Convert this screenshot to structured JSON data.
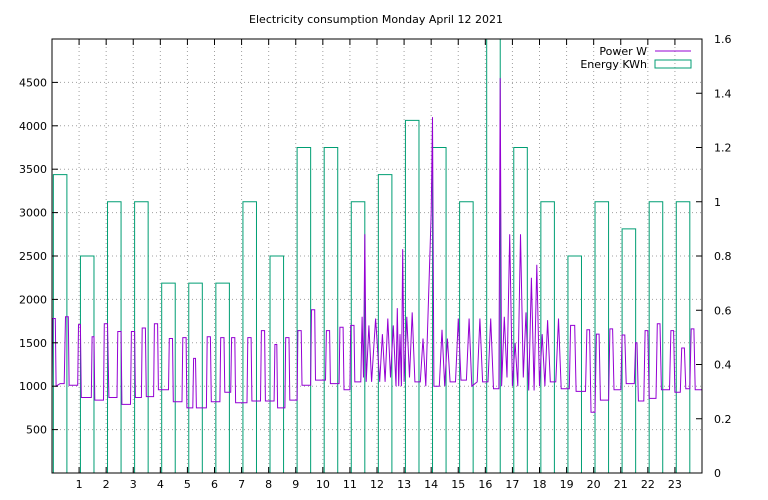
{
  "chart_data": {
    "type": "line",
    "title": "Electricity consumption Monday April 12 2021",
    "grid": true,
    "legend_placement": "top-right",
    "x_axis": {
      "min": 0,
      "max": 24,
      "ticks": [
        1,
        2,
        3,
        4,
        5,
        6,
        7,
        8,
        9,
        10,
        11,
        12,
        13,
        14,
        15,
        16,
        17,
        18,
        19,
        20,
        21,
        22,
        23
      ],
      "tick_labels": [
        "1",
        "2",
        "3",
        "4",
        "5",
        "6",
        "7",
        "8",
        "9",
        "10",
        "11",
        "12",
        "13",
        "14",
        "15",
        "16",
        "17",
        "18",
        "19",
        "20",
        "21",
        "22",
        "23"
      ]
    },
    "y_axis_left": {
      "min": 0,
      "max": 5000,
      "ticks": [
        500,
        1000,
        1500,
        2000,
        2500,
        3000,
        3500,
        4000,
        4500
      ],
      "tick_labels": [
        "500",
        "1000",
        "1500",
        "2000",
        "2500",
        "3000",
        "3500",
        "4000",
        "4500"
      ]
    },
    "y_axis_right": {
      "min": 0,
      "max": 1.6,
      "ticks": [
        0,
        0.2,
        0.4,
        0.6,
        0.8,
        1,
        1.2,
        1.4,
        1.6
      ],
      "tick_labels": [
        "0",
        "0.2",
        "0.4",
        "0.6",
        "0.8",
        "1",
        "1.2",
        "1.4",
        "1.6"
      ]
    },
    "series": [
      {
        "name": "Power W",
        "color": "#9400d3",
        "axis": "left",
        "kind": "line",
        "points": [
          [
            0,
            1000
          ],
          [
            0.03,
            1780
          ],
          [
            0.12,
            1780
          ],
          [
            0.15,
            1000
          ],
          [
            0.3,
            1030
          ],
          [
            0.45,
            1030
          ],
          [
            0.5,
            1800
          ],
          [
            0.6,
            1800
          ],
          [
            0.63,
            1010
          ],
          [
            0.95,
            1010
          ],
          [
            0.98,
            1710
          ],
          [
            1.05,
            1710
          ],
          [
            1.08,
            870
          ],
          [
            1.45,
            870
          ],
          [
            1.48,
            1570
          ],
          [
            1.55,
            1570
          ],
          [
            1.58,
            840
          ],
          [
            1.9,
            840
          ],
          [
            1.93,
            1720
          ],
          [
            2.05,
            1720
          ],
          [
            2.1,
            870
          ],
          [
            2.4,
            870
          ],
          [
            2.43,
            1630
          ],
          [
            2.55,
            1630
          ],
          [
            2.58,
            790
          ],
          [
            2.9,
            790
          ],
          [
            2.93,
            1630
          ],
          [
            3.05,
            1630
          ],
          [
            3.08,
            870
          ],
          [
            3.3,
            870
          ],
          [
            3.33,
            1670
          ],
          [
            3.45,
            1670
          ],
          [
            3.48,
            880
          ],
          [
            3.75,
            880
          ],
          [
            3.78,
            1720
          ],
          [
            3.9,
            1720
          ],
          [
            3.93,
            960
          ],
          [
            4.3,
            960
          ],
          [
            4.33,
            1550
          ],
          [
            4.45,
            1550
          ],
          [
            4.48,
            820
          ],
          [
            4.8,
            820
          ],
          [
            4.83,
            1560
          ],
          [
            4.95,
            1560
          ],
          [
            4.98,
            750
          ],
          [
            5.2,
            750
          ],
          [
            5.23,
            1320
          ],
          [
            5.3,
            1320
          ],
          [
            5.33,
            750
          ],
          [
            5.7,
            750
          ],
          [
            5.73,
            1570
          ],
          [
            5.85,
            1570
          ],
          [
            5.88,
            820
          ],
          [
            6.2,
            820
          ],
          [
            6.23,
            1560
          ],
          [
            6.35,
            1560
          ],
          [
            6.38,
            930
          ],
          [
            6.6,
            930
          ],
          [
            6.63,
            1560
          ],
          [
            6.75,
            1560
          ],
          [
            6.78,
            810
          ],
          [
            7.2,
            810
          ],
          [
            7.23,
            1560
          ],
          [
            7.35,
            1560
          ],
          [
            7.38,
            830
          ],
          [
            7.7,
            830
          ],
          [
            7.73,
            1640
          ],
          [
            7.85,
            1640
          ],
          [
            7.88,
            830
          ],
          [
            8.2,
            830
          ],
          [
            8.23,
            1480
          ],
          [
            8.3,
            1480
          ],
          [
            8.33,
            750
          ],
          [
            8.6,
            750
          ],
          [
            8.63,
            1560
          ],
          [
            8.75,
            1560
          ],
          [
            8.78,
            840
          ],
          [
            9.05,
            840
          ],
          [
            9.08,
            1640
          ],
          [
            9.2,
            1640
          ],
          [
            9.23,
            1010
          ],
          [
            9.55,
            1010
          ],
          [
            9.58,
            1880
          ],
          [
            9.7,
            1880
          ],
          [
            9.73,
            1070
          ],
          [
            10.1,
            1070
          ],
          [
            10.13,
            1640
          ],
          [
            10.25,
            1640
          ],
          [
            10.28,
            1030
          ],
          [
            10.6,
            1030
          ],
          [
            10.63,
            1680
          ],
          [
            10.75,
            1680
          ],
          [
            10.78,
            960
          ],
          [
            11.0,
            960
          ],
          [
            11.03,
            1700
          ],
          [
            11.15,
            1700
          ],
          [
            11.18,
            1050
          ],
          [
            11.4,
            1050
          ],
          [
            11.45,
            1800
          ],
          [
            11.5,
            1100
          ],
          [
            11.55,
            2750
          ],
          [
            11.6,
            1050
          ],
          [
            11.7,
            1700
          ],
          [
            11.8,
            1050
          ],
          [
            11.95,
            1780
          ],
          [
            12.1,
            1050
          ],
          [
            12.2,
            1600
          ],
          [
            12.3,
            1050
          ],
          [
            12.4,
            1780
          ],
          [
            12.5,
            1100
          ],
          [
            12.6,
            1700
          ],
          [
            12.7,
            1000
          ],
          [
            12.75,
            1900
          ],
          [
            12.8,
            1000
          ],
          [
            12.85,
            1600
          ],
          [
            12.9,
            1000
          ],
          [
            12.95,
            2580
          ],
          [
            13.0,
            1050
          ],
          [
            13.1,
            1800
          ],
          [
            13.2,
            1100
          ],
          [
            13.3,
            1850
          ],
          [
            13.4,
            1050
          ],
          [
            13.5,
            1050
          ],
          [
            13.6,
            1050
          ],
          [
            13.7,
            1550
          ],
          [
            13.8,
            1000
          ],
          [
            13.9,
            2000
          ],
          [
            14.0,
            3000
          ],
          [
            14.05,
            4100
          ],
          [
            14.1,
            1000
          ],
          [
            14.3,
            1000
          ],
          [
            14.4,
            1650
          ],
          [
            14.5,
            1000
          ],
          [
            14.6,
            1550
          ],
          [
            14.7,
            1050
          ],
          [
            14.9,
            1050
          ],
          [
            15.0,
            1780
          ],
          [
            15.1,
            1070
          ],
          [
            15.3,
            1070
          ],
          [
            15.4,
            1780
          ],
          [
            15.5,
            1000
          ],
          [
            15.7,
            1050
          ],
          [
            15.8,
            1780
          ],
          [
            15.9,
            1050
          ],
          [
            16.1,
            1050
          ],
          [
            16.2,
            1780
          ],
          [
            16.3,
            970
          ],
          [
            16.5,
            970
          ],
          [
            16.55,
            4550
          ],
          [
            16.6,
            1000
          ],
          [
            16.7,
            1800
          ],
          [
            16.8,
            1100
          ],
          [
            16.9,
            2750
          ],
          [
            17.0,
            1000
          ],
          [
            17.1,
            1500
          ],
          [
            17.2,
            1000
          ],
          [
            17.3,
            2750
          ],
          [
            17.4,
            1100
          ],
          [
            17.5,
            1850
          ],
          [
            17.6,
            950
          ],
          [
            17.7,
            2250
          ],
          [
            17.8,
            950
          ],
          [
            17.9,
            2400
          ],
          [
            18.0,
            1000
          ],
          [
            18.1,
            1600
          ],
          [
            18.2,
            1000
          ],
          [
            18.3,
            1760
          ],
          [
            18.4,
            1050
          ],
          [
            18.6,
            1050
          ],
          [
            18.7,
            1780
          ],
          [
            18.8,
            970
          ],
          [
            19.1,
            970
          ],
          [
            19.15,
            1700
          ],
          [
            19.3,
            1700
          ],
          [
            19.35,
            940
          ],
          [
            19.7,
            940
          ],
          [
            19.75,
            1650
          ],
          [
            19.85,
            1650
          ],
          [
            19.9,
            700
          ],
          [
            20.05,
            700
          ],
          [
            20.1,
            1600
          ],
          [
            20.2,
            1600
          ],
          [
            20.25,
            840
          ],
          [
            20.55,
            840
          ],
          [
            20.6,
            1660
          ],
          [
            20.7,
            1660
          ],
          [
            20.75,
            960
          ],
          [
            21.0,
            960
          ],
          [
            21.05,
            1590
          ],
          [
            21.15,
            1590
          ],
          [
            21.2,
            1030
          ],
          [
            21.5,
            1030
          ],
          [
            21.55,
            1500
          ],
          [
            21.6,
            1500
          ],
          [
            21.65,
            830
          ],
          [
            21.85,
            830
          ],
          [
            21.9,
            1640
          ],
          [
            22.0,
            1640
          ],
          [
            22.05,
            860
          ],
          [
            22.3,
            860
          ],
          [
            22.35,
            1720
          ],
          [
            22.45,
            1720
          ],
          [
            22.5,
            960
          ],
          [
            22.8,
            960
          ],
          [
            22.85,
            1640
          ],
          [
            22.95,
            1640
          ],
          [
            23.0,
            930
          ],
          [
            23.2,
            930
          ],
          [
            23.25,
            1440
          ],
          [
            23.35,
            1440
          ],
          [
            23.4,
            970
          ],
          [
            23.55,
            970
          ],
          [
            23.6,
            1660
          ],
          [
            23.7,
            1660
          ],
          [
            23.75,
            960
          ],
          [
            24,
            960
          ]
        ]
      },
      {
        "name": "Energy KWh",
        "color": "#009e73",
        "axis": "right",
        "kind": "step-bars",
        "hours": [
          0,
          1,
          2,
          3,
          4,
          5,
          6,
          7,
          8,
          9,
          10,
          11,
          12,
          13,
          14,
          15,
          16,
          17,
          18,
          19,
          20,
          21,
          22,
          23
        ],
        "values": [
          1.1,
          0.8,
          1.0,
          1.0,
          0.7,
          0.7,
          0.7,
          1.0,
          0.8,
          1.2,
          1.2,
          1.0,
          1.1,
          1.3,
          1.2,
          1.0,
          1.6,
          1.2,
          1.0,
          0.8,
          1.0,
          0.9,
          1.0,
          1.0
        ]
      }
    ]
  }
}
